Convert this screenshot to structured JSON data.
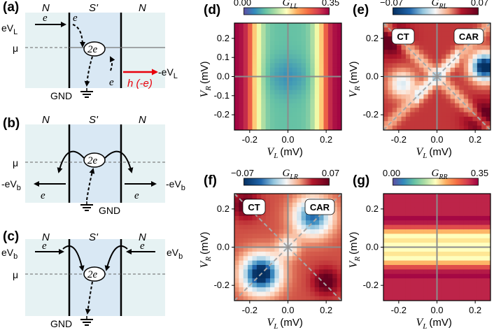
{
  "schematics": {
    "a": {
      "label": "(a)",
      "left_region": "N",
      "middle_region": "S'",
      "right_region": "N",
      "input_label": "eV",
      "input_sub": "L",
      "mu": "μ",
      "e1": "e",
      "e2": "e",
      "e3": "e",
      "pair": "2e",
      "gnd": "GND",
      "hole_label": "h (-e)",
      "out_label": "-eV",
      "out_sub": "L",
      "hole_color": "#e8000b"
    },
    "b": {
      "label": "(b)",
      "left_region": "N",
      "middle_region": "S'",
      "right_region": "N",
      "mu": "μ",
      "pair": "2e",
      "e_left": "e",
      "e_right": "e",
      "left_label": "-eV",
      "left_sub": "b",
      "right_label": "-eV",
      "right_sub": "b",
      "gnd": "GND"
    },
    "c": {
      "label": "(c)",
      "left_region": "N",
      "middle_region": "S'",
      "right_region": "N",
      "mu": "μ",
      "pair": "2e",
      "e_left": "e",
      "e_right": "e",
      "left_label": "eV",
      "left_sub": "b",
      "right_label": "eV",
      "right_sub": "b",
      "gnd": "GND"
    }
  },
  "colors": {
    "n_region": "#e6f2f3",
    "s_region": "#d9e8f4",
    "dashed_diag": "#a8a8a8",
    "axis_lines": "#8c8c8c"
  },
  "chart_data": [
    {
      "panel": "(d)",
      "type": "heatmap",
      "cbar_label": "G",
      "cbar_sub": "LL",
      "cbar_min_label": "0.00",
      "cbar_max_label": "0.35",
      "clim": [
        0.0,
        0.35
      ],
      "colormap": "Spectral_r",
      "xlabel": "V",
      "xlabel_sub": "L",
      "xlabel_unit": "(mV)",
      "ylabel": "V",
      "ylabel_sub": "R",
      "ylabel_unit": "(mV)",
      "xlim": [
        -0.28,
        0.28
      ],
      "ylim": [
        -0.28,
        0.28
      ],
      "xticks": [
        "-0.2",
        "0.0",
        "0.2"
      ],
      "yticks": [
        "0.2",
        "0.1",
        "0.0",
        "-0.1",
        "-0.2"
      ],
      "zero_lines": true,
      "model": "gll"
    },
    {
      "panel": "(e)",
      "type": "heatmap",
      "cbar_label": "G",
      "cbar_sub": "RL",
      "cbar_min_label": "−0.07",
      "cbar_max_label": "0.07",
      "clim": [
        -0.07,
        0.07
      ],
      "colormap": "RdBu_r",
      "xlabel": "V",
      "xlabel_sub": "L",
      "xlabel_unit": "(mV)",
      "ylabel": "V",
      "ylabel_sub": "R",
      "ylabel_unit": "(mV)",
      "xlim": [
        -0.28,
        0.28
      ],
      "ylim": [
        -0.28,
        0.28
      ],
      "xticks": [
        "-0.2",
        "0.0",
        "0.2"
      ],
      "yticks": [
        "0.2",
        "0.0",
        "-0.2"
      ],
      "annotations": [
        "CT",
        "CAR"
      ],
      "diagonals": true,
      "zero_lines": true,
      "model": "grl"
    },
    {
      "panel": "(f)",
      "type": "heatmap",
      "cbar_label": "G",
      "cbar_sub": "LR",
      "cbar_min_label": "−0.07",
      "cbar_max_label": "0.07",
      "clim": [
        -0.07,
        0.07
      ],
      "colormap": "RdBu_r",
      "xlabel": "V",
      "xlabel_sub": "L",
      "xlabel_unit": "(mV)",
      "ylabel": "V",
      "ylabel_sub": "R",
      "ylabel_unit": "(mV)",
      "xlim": [
        -0.28,
        0.28
      ],
      "ylim": [
        -0.28,
        0.28
      ],
      "xticks": [
        "-0.2",
        "0.0",
        "0.2"
      ],
      "yticks": [
        "0.2",
        "0.0",
        "-0.2"
      ],
      "annotations": [
        "CT",
        "CAR"
      ],
      "diagonals": true,
      "zero_lines": true,
      "model": "glr"
    },
    {
      "panel": "(g)",
      "type": "heatmap",
      "cbar_label": "G",
      "cbar_sub": "RR",
      "cbar_min_label": "0.00",
      "cbar_max_label": "0.35",
      "clim": [
        0.0,
        0.35
      ],
      "colormap": "Spectral_r",
      "xlabel": "V",
      "xlabel_sub": "L",
      "xlabel_unit": "(mV)",
      "ylabel": "V",
      "ylabel_sub": "R",
      "ylabel_unit": "(mV)",
      "xlim": [
        -0.28,
        0.28
      ],
      "ylim": [
        -0.28,
        0.28
      ],
      "xticks": [
        "-0.2",
        "0.0",
        "0.2"
      ],
      "yticks": [
        "0.2",
        "0.0",
        "-0.2"
      ],
      "zero_lines": true,
      "model": "grr"
    }
  ]
}
